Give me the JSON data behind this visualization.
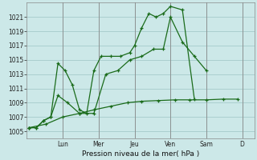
{
  "background_color": "#cce8e8",
  "grid_color": "#aacfcf",
  "line_color": "#1a6b1a",
  "title": "Pression niveau de la mer( hPa )",
  "ylabel_ticks": [
    1005,
    1007,
    1009,
    1011,
    1013,
    1015,
    1017,
    1019,
    1021
  ],
  "ylim": [
    1004.0,
    1023.0
  ],
  "xlim": [
    0,
    9.5
  ],
  "day_positions": [
    1.5,
    3.0,
    4.5,
    6.0,
    7.5,
    9.0
  ],
  "day_labels": [
    "Lun",
    "Mer",
    "Jeu",
    "Ven",
    "Sam",
    "D"
  ],
  "series": [
    {
      "x": [
        0.1,
        0.4,
        0.7,
        1.0,
        1.3,
        1.6,
        1.9,
        2.2,
        2.5,
        2.8,
        3.1,
        3.5,
        3.9,
        4.3,
        4.5,
        4.8,
        5.1,
        5.4,
        5.7,
        6.0,
        6.5,
        7.0
      ],
      "y": [
        1005.5,
        1005.5,
        1006.5,
        1007.0,
        1014.5,
        1013.5,
        1011.5,
        1008.0,
        1007.5,
        1013.5,
        1015.5,
        1015.5,
        1015.5,
        1016.0,
        1017.0,
        1019.5,
        1021.5,
        1021.0,
        1021.5,
        1022.5,
        1022.0,
        1009.5
      ]
    },
    {
      "x": [
        0.1,
        0.4,
        0.7,
        1.0,
        1.3,
        1.7,
        2.2,
        2.8,
        3.3,
        3.8,
        4.3,
        4.8,
        5.3,
        5.7,
        6.0,
        6.5,
        7.0,
        7.5
      ],
      "y": [
        1005.5,
        1005.5,
        1006.5,
        1007.0,
        1010.0,
        1009.0,
        1007.5,
        1007.5,
        1013.0,
        1013.5,
        1015.0,
        1015.5,
        1016.5,
        1016.5,
        1021.0,
        1017.5,
        1015.5,
        1013.5
      ]
    },
    {
      "x": [
        0.1,
        0.8,
        1.5,
        2.2,
        2.8,
        3.5,
        4.2,
        4.8,
        5.5,
        6.2,
        6.8,
        7.5,
        8.2,
        8.8
      ],
      "y": [
        1005.5,
        1006.0,
        1007.0,
        1007.5,
        1008.0,
        1008.5,
        1009.0,
        1009.2,
        1009.3,
        1009.4,
        1009.4,
        1009.4,
        1009.5,
        1009.5
      ]
    }
  ]
}
